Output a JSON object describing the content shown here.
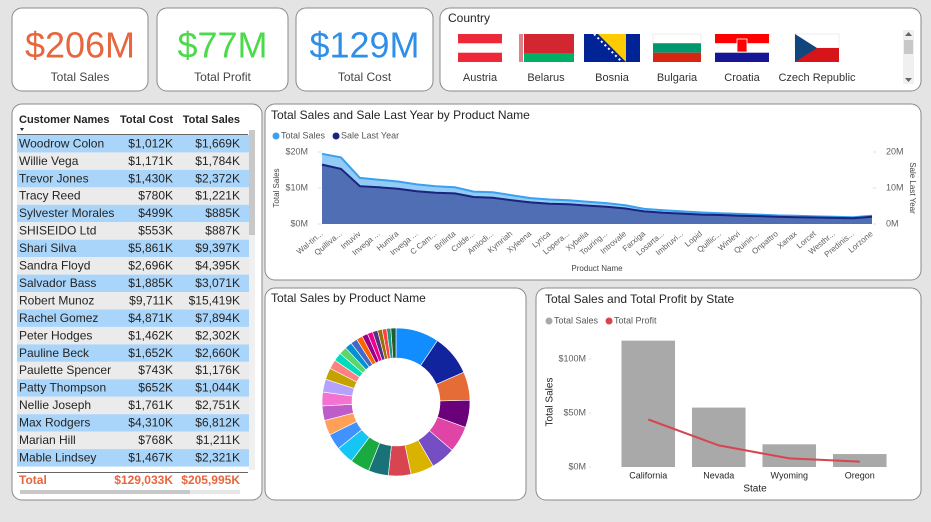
{
  "cards": [
    {
      "value": "$206M",
      "label": "Total Sales",
      "color": "#e8663d"
    },
    {
      "value": "$77M",
      "label": "Total Profit",
      "color": "#4cd94c"
    },
    {
      "value": "$129M",
      "label": "Total Cost",
      "color": "#2f8fe8"
    }
  ],
  "slicer": {
    "title": "Country",
    "items": [
      "Austria",
      "Belarus",
      "Bosnia",
      "Bulgaria",
      "Croatia",
      "Czech Republic"
    ]
  },
  "table": {
    "columns": [
      "Customer Names",
      "Total Cost",
      "Total Sales"
    ],
    "rows": [
      [
        "Woodrow Colon",
        "$1,012K",
        "$1,669K"
      ],
      [
        "Willie Vega",
        "$1,171K",
        "$1,784K"
      ],
      [
        "Trevor Jones",
        "$1,430K",
        "$2,372K"
      ],
      [
        "Tracy Reed",
        "$780K",
        "$1,221K"
      ],
      [
        "Sylvester Morales",
        "$499K",
        "$885K"
      ],
      [
        "SHISEIDO Ltd",
        "$553K",
        "$887K"
      ],
      [
        "Shari Silva",
        "$5,861K",
        "$9,397K"
      ],
      [
        "Sandra Floyd",
        "$2,696K",
        "$4,395K"
      ],
      [
        "Salvador Bass",
        "$1,885K",
        "$3,071K"
      ],
      [
        "Robert Munoz",
        "$9,711K",
        "$15,419K"
      ],
      [
        "Rachel Gomez",
        "$4,871K",
        "$7,894K"
      ],
      [
        "Peter Hodges",
        "$1,462K",
        "$2,302K"
      ],
      [
        "Pauline Beck",
        "$1,652K",
        "$2,660K"
      ],
      [
        "Paulette Spencer",
        "$743K",
        "$1,176K"
      ],
      [
        "Patty Thompson",
        "$652K",
        "$1,044K"
      ],
      [
        "Nellie Joseph",
        "$1,761K",
        "$2,751K"
      ],
      [
        "Max Rodgers",
        "$4,310K",
        "$6,812K"
      ],
      [
        "Marian Hill",
        "$768K",
        "$1,211K"
      ],
      [
        "Mable Lindsey",
        "$1,467K",
        "$2,321K"
      ]
    ],
    "total": [
      "Total",
      "$129,033K",
      "$205,995K"
    ]
  },
  "chart_data": [
    {
      "type": "area",
      "title": "Total Sales and Sale Last Year by Product Name",
      "x_label": "Product Name",
      "y_label": "Total Sales",
      "y2_label": "Sale Last Year",
      "categories": [
        "Wal-tin...",
        "Quilliva...",
        "Intuviv",
        "Invega ...",
        "Humira",
        "Invega ...",
        "C Cam...",
        "Brilinta",
        "Colde...",
        "Amlodi...",
        "Kymriah",
        "Xyleena",
        "Lyrica",
        "Lopera...",
        "Xybelia",
        "Touring...",
        "Introvale",
        "Farxiga",
        "Losarta...",
        "Imbruvi...",
        "Lopid",
        "Quillic...",
        "Winlevi",
        "Quinin...",
        "Onpattro",
        "Xanax",
        "Lorcet",
        "Westhr...",
        "Predinis...",
        "Lorzone"
      ],
      "series": [
        {
          "name": "Total Sales",
          "color": "#3aa0f0",
          "values": [
            19.5,
            18.5,
            12.8,
            12.3,
            11.8,
            11.0,
            10.5,
            10.2,
            9.0,
            8.8,
            8.0,
            7.2,
            6.8,
            6.6,
            6.2,
            5.8,
            5.2,
            4.2,
            3.8,
            3.5,
            3.2,
            3.0,
            2.8,
            2.6,
            2.4,
            2.3,
            2.1,
            2.0,
            1.9,
            2.3
          ]
        },
        {
          "name": "Sale Last Year",
          "color": "#1a237e",
          "axis": "y2",
          "values": [
            16.5,
            15.3,
            10.5,
            10.2,
            9.8,
            9.1,
            8.7,
            8.5,
            7.5,
            7.3,
            6.6,
            6.0,
            5.6,
            5.5,
            5.1,
            4.8,
            4.3,
            3.5,
            3.1,
            2.9,
            2.6,
            2.5,
            2.3,
            2.2,
            2.0,
            1.9,
            1.8,
            1.7,
            1.6,
            2.0
          ]
        }
      ],
      "ylim": [
        0,
        22
      ],
      "yticks": [
        {
          "value": 0,
          "label": "$0M"
        },
        {
          "value": 10,
          "label": "$10M"
        },
        {
          "value": 20,
          "label": "$20M"
        }
      ],
      "y2lim": [
        0,
        22
      ],
      "y2ticks": [
        {
          "value": 0,
          "label": "0M"
        },
        {
          "value": 10,
          "label": "10M"
        },
        {
          "value": 20,
          "label": "20M"
        }
      ],
      "legend": "top-left"
    },
    {
      "type": "donut",
      "title": "Total Sales by Product Name",
      "values": [
        19.5,
        18.5,
        12.8,
        12.3,
        11.8,
        11.0,
        10.5,
        10.2,
        9.0,
        8.8,
        8.0,
        7.2,
        6.8,
        6.6,
        6.2,
        5.8,
        5.2,
        4.2,
        3.8,
        3.5,
        3.2,
        3.0,
        2.8,
        2.6,
        2.4,
        2.3,
        2.1,
        2.0,
        1.9,
        2.3
      ],
      "colors": [
        "#118dff",
        "#12239e",
        "#e66c37",
        "#6b007b",
        "#e044a7",
        "#744ec2",
        "#d9b300",
        "#d64550",
        "#197278",
        "#1aab40",
        "#15c6f4",
        "#4092ff",
        "#ffa058",
        "#be5dc9",
        "#f472d0",
        "#b5a1ff",
        "#c4a200",
        "#ff8080",
        "#00dbbc",
        "#5bd667",
        "#0091d5",
        "#4668c5",
        "#ff6300",
        "#99008a",
        "#ec008c",
        "#533285",
        "#99700a",
        "#ff4141",
        "#1f9a85",
        "#255a2f"
      ]
    },
    {
      "type": "combo",
      "title": "Total Sales and Total Profit by State",
      "x_label": "State",
      "y_label": "Total Sales",
      "categories": [
        "California",
        "Nevada",
        "Wyoming",
        "Oregon"
      ],
      "series": [
        {
          "name": "Total Sales",
          "type": "bar",
          "color": "#a9a9a9",
          "values": [
            117,
            55,
            21,
            12
          ]
        },
        {
          "name": "Total Profit",
          "type": "line",
          "color": "#d64550",
          "values": [
            44,
            20,
            8,
            5
          ]
        }
      ],
      "ylim": [
        0,
        125
      ],
      "yticks": [
        {
          "value": 0,
          "label": "$0M"
        },
        {
          "value": 50,
          "label": "$50M"
        },
        {
          "value": 100,
          "label": "$100M"
        }
      ],
      "legend": "top-left"
    }
  ]
}
